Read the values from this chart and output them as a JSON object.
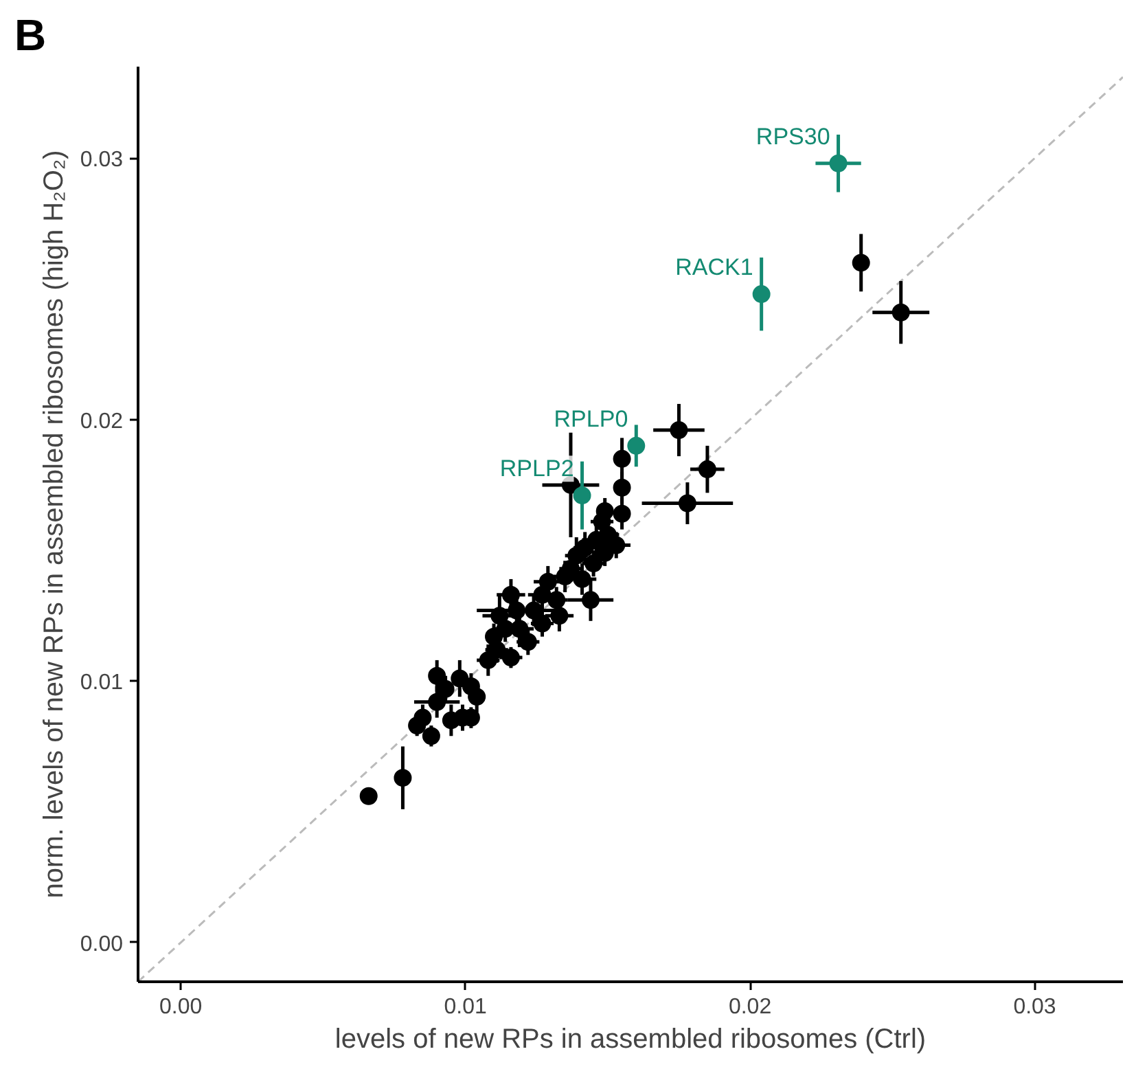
{
  "chart_data": {
    "type": "scatter",
    "title": "B",
    "xlabel": "levels of new RPs in assembled ribosomes (Ctrl)",
    "ylabel": "norm. levels of new RPs in assembled ribosomes (high H₂O₂)",
    "xlim": [
      -0.0015,
      0.0331
    ],
    "ylim": [
      -0.0015,
      0.0335
    ],
    "xticks": [
      {
        "value": 0,
        "label": "0.00"
      },
      0.01,
      0.02,
      0.03
    ],
    "yticks": [
      {
        "value": 0,
        "label": "0.00"
      },
      0.01,
      0.02,
      0.03
    ],
    "grid": false,
    "marker": "circle",
    "series": [
      {
        "type": "line",
        "color": "#bbbbbb",
        "line_style": "dashed",
        "marker": "none",
        "x": [
          -0.0015,
          0.0331
        ],
        "values": [
          -0.0015,
          0.0331
        ]
      },
      {
        "color": "#000000",
        "x": [
          0.0239,
          0.0253,
          0.0175,
          0.0185,
          0.0178,
          0.0155,
          0.0155,
          0.0137,
          0.0155,
          0.0149,
          0.0066,
          0.0078,
          0.0083,
          0.0085,
          0.0088,
          0.009,
          0.0093,
          0.009,
          0.0098,
          0.0095,
          0.0099,
          0.0102,
          0.0104,
          0.0102,
          0.0108,
          0.0111,
          0.0112,
          0.011,
          0.0116,
          0.0119,
          0.0118,
          0.0122,
          0.0124,
          0.0127,
          0.0127,
          0.0129,
          0.0132,
          0.0135,
          0.0133,
          0.0137,
          0.0139,
          0.0141,
          0.0142,
          0.0145,
          0.0146,
          0.0149,
          0.015,
          0.0148,
          0.0153,
          0.0144,
          0.0116,
          0.0114
        ],
        "values": [
          0.026,
          0.0241,
          0.0196,
          0.0181,
          0.0168,
          0.0185,
          0.0174,
          0.0175,
          0.0164,
          0.0165,
          0.0056,
          0.0063,
          0.0083,
          0.0086,
          0.0079,
          0.0092,
          0.0097,
          0.0102,
          0.0101,
          0.0085,
          0.0086,
          0.0086,
          0.0094,
          0.0098,
          0.0108,
          0.0112,
          0.0125,
          0.0117,
          0.0109,
          0.012,
          0.0127,
          0.0115,
          0.0127,
          0.0133,
          0.0122,
          0.0138,
          0.0131,
          0.014,
          0.0125,
          0.0143,
          0.0148,
          0.0139,
          0.0151,
          0.0145,
          0.0154,
          0.0149,
          0.0156,
          0.0161,
          0.0152,
          0.0131,
          0.0133,
          0.012
        ],
        "errors": [
          0.0011,
          0.0012,
          0.001,
          0.0009,
          0.0008,
          0.0008,
          0.0006,
          0.002,
          0.0006,
          0.0005,
          0.0003,
          0.0012,
          0.0004,
          0.0005,
          0.0004,
          0.0006,
          0.0005,
          0.0006,
          0.0007,
          0.0006,
          0.0005,
          0.0004,
          0.0006,
          0.0005,
          0.0006,
          0.0005,
          0.0008,
          0.0005,
          0.0004,
          0.0007,
          0.0006,
          0.0005,
          0.0006,
          0.0007,
          0.0005,
          0.0006,
          0.0005,
          0.0006,
          0.0006,
          0.0005,
          0.0007,
          0.0006,
          0.0006,
          0.0005,
          0.0006,
          0.0005,
          0.0005,
          0.0006,
          0.0005,
          0.0008,
          0.0006,
          0.0005
        ],
        "xerrors": [
          0.0002,
          0.001,
          0.0009,
          0.0006,
          0.0016,
          0.0002,
          0.0002,
          0.001,
          0.0003,
          0.0003,
          0.0003,
          0.0002,
          0.0003,
          0.0002,
          0.0002,
          0.0008,
          0.0003,
          0.0002,
          0.0003,
          0.0002,
          0.0002,
          0.0002,
          0.0003,
          0.0002,
          0.0004,
          0.0004,
          0.0006,
          0.0003,
          0.0004,
          0.0005,
          0.0014,
          0.0004,
          0.0004,
          0.0005,
          0.0004,
          0.0005,
          0.0004,
          0.0004,
          0.0005,
          0.0004,
          0.0004,
          0.0005,
          0.0004,
          0.0004,
          0.0005,
          0.0003,
          0.0004,
          0.0004,
          0.0005,
          0.0008,
          0.0005,
          0.0004
        ]
      },
      {
        "color": "#148a72",
        "x": [
          0.0231,
          0.0204,
          0.016,
          0.0141
        ],
        "values": [
          0.0298,
          0.0248,
          0.019,
          0.0171
        ],
        "errors": [
          0.0011,
          0.0014,
          0.0008,
          0.0013
        ],
        "xerrors": [
          0.0008,
          0.0002,
          0.0002,
          0.0002
        ]
      }
    ],
    "annotations": [
      {
        "text": "RPS30",
        "x": 0.0231,
        "y": 0.0298
      },
      {
        "text": "RACK1",
        "x": 0.0204,
        "y": 0.0248
      },
      {
        "text": "RPLP0",
        "x": 0.016,
        "y": 0.019
      },
      {
        "text": "RPLP2",
        "x": 0.0141,
        "y": 0.0171
      }
    ]
  }
}
